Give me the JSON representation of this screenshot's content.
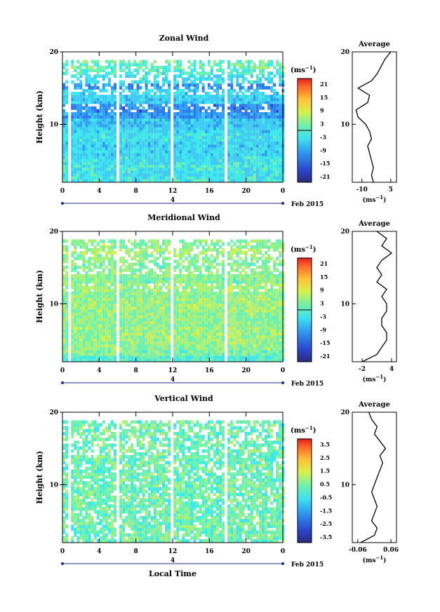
{
  "date_label": "Feb 2015",
  "day_label": "4",
  "xlabel_bottom": "Local Time",
  "chart_data": [
    {
      "type": "heatmap",
      "title": "Zonal Wind",
      "ylabel": "Height (km)",
      "x_ticks": [
        "0",
        "4",
        "8",
        "12",
        "16",
        "20",
        "0"
      ],
      "y_ticks": [
        "20",
        "10"
      ],
      "xlim": [
        0,
        24
      ],
      "ylim": [
        2,
        20
      ],
      "colorbar": {
        "unit": "(ms",
        "unit_sup": "−1",
        "unit_end": ")",
        "ticks": [
          "21",
          "15",
          "9",
          "3",
          "-3",
          "-9",
          "-15",
          "-21"
        ],
        "range": [
          -24,
          24
        ]
      },
      "profile": {
        "title": "Average",
        "x_ticks": [
          "-10",
          "5"
        ],
        "xlim": [
          -15,
          8
        ],
        "y_ticks": [
          "20",
          "10"
        ],
        "xlabel": "(ms",
        "xlabel_sup": "−1",
        "heights": [
          2,
          3,
          4,
          5,
          6,
          7,
          8,
          9,
          10,
          11,
          12,
          13,
          14,
          15,
          16,
          17,
          18,
          19,
          20
        ],
        "values": [
          -4,
          -5,
          -4,
          -5,
          -6,
          -7,
          -5,
          -6,
          -8,
          -12,
          -13,
          -7,
          -6,
          -12,
          -5,
          -2,
          0,
          2,
          5
        ]
      }
    },
    {
      "type": "heatmap",
      "title": "Meridional Wind",
      "ylabel": "Height (km)",
      "x_ticks": [
        "0",
        "4",
        "8",
        "12",
        "16",
        "20",
        "0"
      ],
      "y_ticks": [
        "20",
        "10"
      ],
      "xlim": [
        0,
        24
      ],
      "ylim": [
        2,
        20
      ],
      "colorbar": {
        "unit": "(ms",
        "unit_sup": "−1",
        "unit_end": ")",
        "ticks": [
          "21",
          "15",
          "9",
          "3",
          "-3",
          "-9",
          "-15",
          "-21"
        ],
        "range": [
          -24,
          24
        ]
      },
      "profile": {
        "title": "Average",
        "x_ticks": [
          "-2",
          "4"
        ],
        "xlim": [
          -4,
          5
        ],
        "y_ticks": [
          "20",
          "10"
        ],
        "xlabel": "(ms",
        "xlabel_sup": "−1",
        "heights": [
          2,
          3,
          4,
          5,
          6,
          7,
          8,
          9,
          10,
          11,
          12,
          13,
          14,
          15,
          16,
          17,
          18,
          19,
          20
        ],
        "values": [
          -2,
          1,
          2,
          3,
          3,
          2,
          2,
          3,
          3,
          2,
          3,
          1,
          2,
          1,
          2,
          4,
          2,
          3,
          1
        ]
      }
    },
    {
      "type": "heatmap",
      "title": "Vertical Wind",
      "ylabel": "Height (km)",
      "x_ticks": [
        "0",
        "4",
        "8",
        "12",
        "16",
        "20",
        "0"
      ],
      "y_ticks": [
        "20",
        "10"
      ],
      "xlim": [
        0,
        24
      ],
      "ylim": [
        2,
        20
      ],
      "colorbar": {
        "unit": "(ms",
        "unit_sup": "−1",
        "unit_end": ")",
        "ticks": [
          "3.5",
          "2.5",
          "1.5",
          "0.5",
          "-0.5",
          "-1.5",
          "-2.5",
          "-3.5"
        ],
        "range": [
          -4,
          4
        ]
      },
      "profile": {
        "title": "Average",
        "x_ticks": [
          "-0.06",
          "0.06"
        ],
        "xlim": [
          -0.08,
          0.08
        ],
        "y_ticks": [
          "20",
          "10"
        ],
        "xlabel": "(ms",
        "xlabel_sup": "−1",
        "heights": [
          2,
          3,
          4,
          5,
          6,
          7,
          8,
          9,
          10,
          11,
          12,
          13,
          14,
          15,
          16,
          17,
          18,
          19,
          20
        ],
        "values": [
          -0.05,
          0.0,
          0.01,
          -0.01,
          0.0,
          0.01,
          0.0,
          -0.01,
          0.0,
          0.01,
          0.02,
          0.03,
          0.02,
          0.04,
          0.02,
          0.0,
          0.01,
          -0.01,
          -0.02
        ]
      }
    }
  ]
}
